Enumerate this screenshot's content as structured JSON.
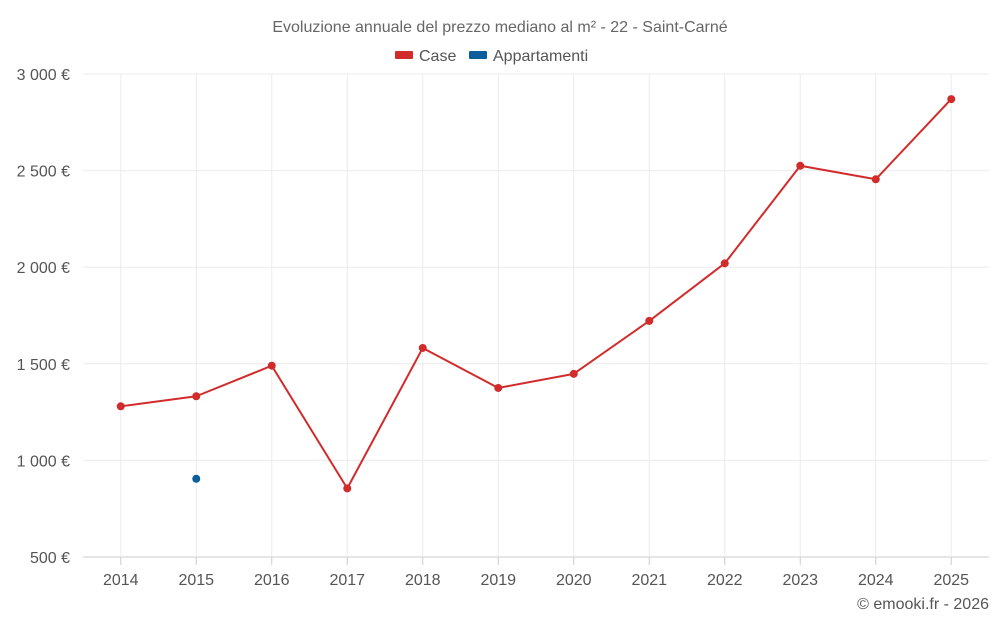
{
  "chart_data": {
    "type": "line",
    "title": "Evoluzione annuale del prezzo mediano al m² - 22 - Saint-Carné",
    "categories": [
      "2014",
      "2015",
      "2016",
      "2017",
      "2018",
      "2019",
      "2020",
      "2021",
      "2022",
      "2023",
      "2024",
      "2025"
    ],
    "series": [
      {
        "name": "Case",
        "color": "#d22b2b",
        "values": [
          1280,
          1332,
          1490,
          855,
          1582,
          1375,
          1448,
          1722,
          2020,
          2525,
          2455,
          2870
        ]
      },
      {
        "name": "Appartamenti",
        "color": "#0b5d9b",
        "values": [
          null,
          905,
          null,
          null,
          null,
          null,
          null,
          null,
          null,
          null,
          null,
          null
        ]
      }
    ],
    "y_axis": {
      "min": 500,
      "max": 3000,
      "ticks": [
        500,
        1000,
        1500,
        2000,
        2500,
        3000
      ],
      "tick_labels": [
        "500 €",
        "1 000 €",
        "1 500 €",
        "2 000 €",
        "2 500 €",
        "3 000 €"
      ]
    },
    "grid": true,
    "legend_position": "top-center"
  },
  "credit": "© emooki.fr - 2026"
}
